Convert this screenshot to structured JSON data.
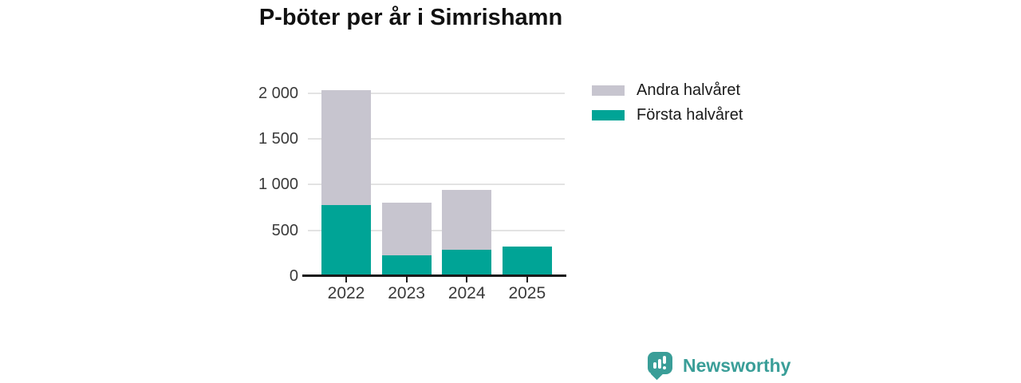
{
  "title": "P-böter per år i Simrishamn",
  "colors": {
    "first_half": "#00a496",
    "second_half": "#c7c5cf",
    "grid": "#e3e3e3",
    "axis": "#1a1a1a",
    "tick_text": "#3a3a3a",
    "brand": "#3a9e98"
  },
  "legend": [
    {
      "label": "Andra halvåret",
      "color_key": "second_half"
    },
    {
      "label": "Första halvåret",
      "color_key": "first_half"
    }
  ],
  "chart_data": {
    "type": "bar",
    "stacked": true,
    "title": "P-böter per år i Simrishamn",
    "categories": [
      "2022",
      "2023",
      "2024",
      "2025"
    ],
    "series": [
      {
        "name": "Första halvåret",
        "color_key": "first_half",
        "values": [
          780,
          230,
          290,
          320
        ]
      },
      {
        "name": "Andra halvåret",
        "color_key": "second_half",
        "values": [
          1250,
          570,
          650,
          0
        ]
      }
    ],
    "totals": [
      2030,
      800,
      940,
      320
    ],
    "xlabel": "",
    "ylabel": "",
    "ylim": [
      0,
      2240
    ],
    "yticks": [
      0,
      500,
      1000,
      1500,
      2000
    ],
    "ytick_labels": [
      "0",
      "500",
      "1 000",
      "1 500",
      "2 000"
    ],
    "grid": true,
    "legend_position": "top-right"
  },
  "footer": {
    "brand": "Newsworthy"
  }
}
